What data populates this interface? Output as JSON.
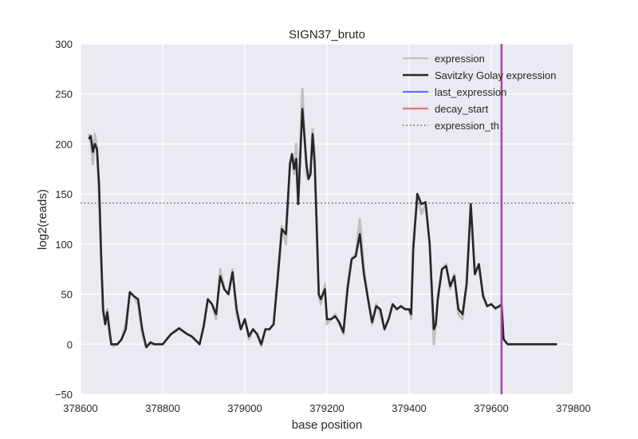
{
  "chart_data": {
    "type": "line",
    "title": "SIGN37_bruto",
    "xlabel": "base position",
    "ylabel": "log2(reads)",
    "xlim": [
      378600,
      379800
    ],
    "ylim": [
      -50,
      300
    ],
    "xticks": [
      378600,
      378800,
      379000,
      379200,
      379400,
      379600,
      379800
    ],
    "xtick_labels": [
      "378600",
      "378800",
      "379000",
      "379200",
      "379400",
      "379600",
      "379800"
    ],
    "yticks": [
      -50,
      0,
      50,
      100,
      150,
      200,
      250,
      300
    ],
    "ytick_labels": [
      "−50",
      "0",
      "50",
      "100",
      "150",
      "200",
      "250",
      "300"
    ],
    "grid": true,
    "legend_position": "top-right",
    "series": [
      {
        "name": "expression",
        "color": "#c0c0c0",
        "x": [
          378620,
          378625,
          378630,
          378635,
          378640,
          378645,
          378650,
          378655,
          378660,
          378665,
          378670,
          378675,
          378680,
          378690,
          378700,
          378710,
          378720,
          378730,
          378740,
          378750,
          378760,
          378770,
          378780,
          378790,
          378800,
          378820,
          378840,
          378860,
          378870,
          378880,
          378890,
          378900,
          378910,
          378920,
          378930,
          378940,
          378950,
          378960,
          378970,
          378980,
          378990,
          379000,
          379010,
          379020,
          379030,
          379040,
          379050,
          379060,
          379070,
          379080,
          379090,
          379100,
          379110,
          379115,
          379120,
          379125,
          379130,
          379140,
          379150,
          379155,
          379160,
          379165,
          379170,
          379175,
          379180,
          379185,
          379190,
          379195,
          379200,
          379210,
          379220,
          379230,
          379240,
          379250,
          379260,
          379270,
          379280,
          379290,
          379300,
          379310,
          379320,
          379330,
          379340,
          379350,
          379360,
          379370,
          379380,
          379390,
          379400,
          379405,
          379410,
          379420,
          379430,
          379440,
          379450,
          379460,
          379465,
          379470,
          379480,
          379490,
          379500,
          379510,
          379520,
          379530,
          379540,
          379550,
          379560,
          379570,
          379580,
          379590,
          379600,
          379610,
          379620,
          379625,
          379630,
          379640,
          379650,
          379700,
          379760
        ],
        "y": [
          210,
          200,
          180,
          210,
          195,
          150,
          80,
          30,
          20,
          35,
          10,
          0,
          -2,
          0,
          5,
          20,
          52,
          48,
          40,
          10,
          -3,
          0,
          0,
          0,
          0,
          10,
          15,
          10,
          8,
          5,
          0,
          20,
          45,
          40,
          25,
          75,
          55,
          50,
          75,
          30,
          15,
          25,
          5,
          15,
          10,
          -2,
          15,
          15,
          20,
          70,
          118,
          100,
          180,
          190,
          170,
          200,
          140,
          255,
          170,
          165,
          175,
          215,
          190,
          110,
          50,
          40,
          50,
          60,
          20,
          25,
          30,
          20,
          10,
          60,
          85,
          90,
          125,
          75,
          45,
          20,
          40,
          30,
          15,
          25,
          40,
          35,
          38,
          35,
          35,
          25,
          100,
          150,
          130,
          140,
          100,
          0,
          20,
          50,
          75,
          80,
          55,
          70,
          30,
          25,
          60,
          140,
          70,
          80,
          50,
          38,
          40,
          35,
          38,
          40,
          5,
          0,
          0,
          0,
          0
        ]
      },
      {
        "name": "Savitzky Golay expression",
        "color": "#262626",
        "x": [
          378620,
          378625,
          378630,
          378635,
          378640,
          378645,
          378650,
          378655,
          378660,
          378665,
          378670,
          378675,
          378680,
          378690,
          378700,
          378710,
          378720,
          378730,
          378740,
          378750,
          378760,
          378770,
          378780,
          378790,
          378800,
          378820,
          378840,
          378860,
          378870,
          378880,
          378890,
          378900,
          378910,
          378920,
          378930,
          378940,
          378950,
          378960,
          378970,
          378980,
          378990,
          379000,
          379010,
          379020,
          379030,
          379040,
          379050,
          379060,
          379070,
          379080,
          379090,
          379100,
          379110,
          379115,
          379120,
          379125,
          379130,
          379140,
          379150,
          379155,
          379160,
          379165,
          379170,
          379175,
          379180,
          379185,
          379190,
          379195,
          379200,
          379210,
          379220,
          379230,
          379240,
          379250,
          379260,
          379270,
          379280,
          379290,
          379300,
          379310,
          379320,
          379330,
          379340,
          379350,
          379360,
          379370,
          379380,
          379390,
          379400,
          379405,
          379410,
          379420,
          379430,
          379440,
          379450,
          379460,
          379465,
          379470,
          379480,
          379490,
          379500,
          379510,
          379520,
          379530,
          379540,
          379550,
          379560,
          379570,
          379580,
          379590,
          379600,
          379610,
          379620,
          379625,
          379630,
          379640,
          379650,
          379700,
          379760
        ],
        "y": [
          205,
          208,
          192,
          200,
          195,
          160,
          90,
          35,
          20,
          32,
          15,
          0,
          0,
          0,
          5,
          15,
          52,
          48,
          45,
          15,
          -3,
          2,
          0,
          0,
          0,
          10,
          16,
          10,
          8,
          4,
          0,
          18,
          45,
          40,
          30,
          68,
          55,
          50,
          72,
          35,
          15,
          25,
          8,
          15,
          10,
          0,
          15,
          15,
          20,
          65,
          115,
          110,
          180,
          190,
          175,
          185,
          140,
          235,
          180,
          165,
          170,
          210,
          180,
          120,
          50,
          45,
          50,
          55,
          25,
          25,
          28,
          22,
          12,
          55,
          85,
          88,
          110,
          70,
          45,
          22,
          38,
          35,
          15,
          25,
          40,
          35,
          38,
          35,
          35,
          30,
          95,
          150,
          140,
          142,
          100,
          15,
          20,
          45,
          75,
          78,
          58,
          68,
          35,
          30,
          60,
          140,
          70,
          80,
          48,
          38,
          40,
          36,
          38,
          40,
          5,
          0,
          0,
          0,
          0
        ]
      },
      {
        "name": "last_expression",
        "color": "#7070ee"
      },
      {
        "name": "decay_start",
        "color": "#ee7070"
      },
      {
        "name": "expression_th",
        "color": "#404040",
        "style": "dotted",
        "y": 141
      }
    ],
    "vertical_lines": [
      {
        "x": 379625,
        "color": "#b040a0"
      }
    ]
  }
}
